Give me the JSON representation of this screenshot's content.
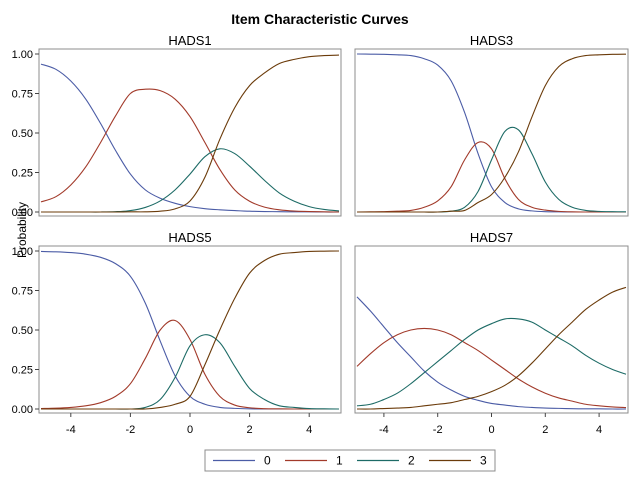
{
  "chart_data": {
    "type": "line",
    "title": "Item Characteristic Curves",
    "ylabel": "Probability",
    "xlabel": "",
    "xlim": [
      -5,
      5
    ],
    "ylim": [
      0,
      1
    ],
    "x_ticks": [
      -4,
      -2,
      0,
      2,
      4
    ],
    "y_ticks": [
      0,
      0.25,
      0.5,
      0.75,
      1
    ],
    "y_tick_labels": [
      "0.00",
      "0.25",
      "0.50",
      "0.75",
      "1.00"
    ],
    "grid": false,
    "legend": {
      "placement": "bottom-center",
      "entries": [
        {
          "label": "0",
          "color": "#4b5ca6"
        },
        {
          "label": "1",
          "color": "#a23a2a"
        },
        {
          "label": "2",
          "color": "#1d6b66"
        },
        {
          "label": "3",
          "color": "#6b3b0a"
        }
      ]
    },
    "x": [
      -5,
      -4.5,
      -4,
      -3.5,
      -3,
      -2.5,
      -2,
      -1.5,
      -1,
      -0.5,
      0,
      0.5,
      1,
      1.5,
      2,
      2.5,
      3,
      3.5,
      4,
      4.5,
      5
    ],
    "panels": [
      {
        "name": "HADS1",
        "series": [
          {
            "name": "0",
            "values": [
              0.936,
              0.903,
              0.829,
              0.715,
              0.56,
              0.39,
              0.24,
              0.14,
              0.087,
              0.055,
              0.034,
              0.021,
              0.014,
              0.009,
              0.005,
              0.003,
              0.002,
              0.001,
              0.001,
              0,
              0
            ]
          },
          {
            "name": "1",
            "values": [
              0.064,
              0.097,
              0.171,
              0.285,
              0.44,
              0.608,
              0.75,
              0.777,
              0.768,
              0.714,
              0.604,
              0.44,
              0.27,
              0.14,
              0.068,
              0.031,
              0.014,
              0.006,
              0.003,
              0.001,
              0
            ]
          },
          {
            "name": "2",
            "values": [
              0,
              0,
              0,
              0,
              0,
              0.002,
              0.009,
              0.029,
              0.07,
              0.14,
              0.24,
              0.35,
              0.4,
              0.37,
              0.29,
              0.2,
              0.12,
              0.068,
              0.034,
              0.016,
              0.007
            ]
          },
          {
            "name": "3",
            "values": [
              0,
              0,
              0,
              0,
              0,
              0,
              0.001,
              0.001,
              0.005,
              0.02,
              0.07,
              0.22,
              0.46,
              0.66,
              0.8,
              0.88,
              0.94,
              0.966,
              0.983,
              0.99,
              0.993
            ]
          }
        ]
      },
      {
        "name": "HADS3",
        "series": [
          {
            "name": "0",
            "values": [
              1,
              0.999,
              0.998,
              0.995,
              0.99,
              0.97,
              0.93,
              0.83,
              0.63,
              0.37,
              0.16,
              0.06,
              0.02,
              0.007,
              0.002,
              0.001,
              0,
              0,
              0,
              0,
              0
            ]
          },
          {
            "name": "1",
            "values": [
              0,
              0.001,
              0.002,
              0.005,
              0.01,
              0.03,
              0.07,
              0.16,
              0.33,
              0.44,
              0.4,
              0.21,
              0.08,
              0.03,
              0.012,
              0.004,
              0.001,
              0,
              0,
              0,
              0
            ]
          },
          {
            "name": "2",
            "values": [
              0,
              0,
              0,
              0,
              0,
              0,
              0,
              0.005,
              0.03,
              0.13,
              0.33,
              0.51,
              0.52,
              0.37,
              0.19,
              0.08,
              0.03,
              0.01,
              0.004,
              0.002,
              0.001
            ]
          },
          {
            "name": "3",
            "values": [
              0,
              0,
              0,
              0,
              0,
              0,
              0,
              0.005,
              0.01,
              0.06,
              0.11,
              0.22,
              0.38,
              0.6,
              0.8,
              0.92,
              0.97,
              0.99,
              0.995,
              0.998,
              0.999
            ]
          }
        ]
      },
      {
        "name": "HADS5",
        "series": [
          {
            "name": "0",
            "values": [
              0.997,
              0.995,
              0.99,
              0.98,
              0.96,
              0.92,
              0.84,
              0.67,
              0.43,
              0.21,
              0.08,
              0.03,
              0.01,
              0.004,
              0.001,
              0,
              0,
              0,
              0,
              0,
              0
            ]
          },
          {
            "name": "1",
            "values": [
              0.003,
              0.005,
              0.01,
              0.02,
              0.04,
              0.08,
              0.16,
              0.32,
              0.5,
              0.56,
              0.44,
              0.22,
              0.08,
              0.025,
              0.008,
              0.002,
              0.001,
              0,
              0,
              0,
              0
            ]
          },
          {
            "name": "2",
            "values": [
              0,
              0,
              0,
              0,
              0,
              0,
              0,
              0.01,
              0.06,
              0.2,
              0.4,
              0.47,
              0.42,
              0.27,
              0.13,
              0.06,
              0.02,
              0.01,
              0.003,
              0.001,
              0
            ]
          },
          {
            "name": "3",
            "values": [
              0,
              0,
              0,
              0,
              0,
              0,
              0,
              0,
              0.01,
              0.03,
              0.08,
              0.28,
              0.5,
              0.7,
              0.86,
              0.94,
              0.98,
              0.99,
              0.997,
              0.999,
              1
            ]
          }
        ]
      },
      {
        "name": "HADS7",
        "series": [
          {
            "name": "0",
            "values": [
              0.71,
              0.62,
              0.52,
              0.42,
              0.33,
              0.24,
              0.17,
              0.12,
              0.08,
              0.055,
              0.035,
              0.025,
              0.015,
              0.01,
              0.006,
              0.004,
              0.002,
              0.001,
              0.001,
              0,
              0
            ]
          },
          {
            "name": "1",
            "values": [
              0.27,
              0.35,
              0.42,
              0.47,
              0.5,
              0.51,
              0.5,
              0.47,
              0.42,
              0.37,
              0.31,
              0.25,
              0.19,
              0.14,
              0.1,
              0.07,
              0.05,
              0.03,
              0.02,
              0.013,
              0.009
            ]
          },
          {
            "name": "2",
            "values": [
              0.02,
              0.03,
              0.06,
              0.1,
              0.16,
              0.23,
              0.3,
              0.37,
              0.44,
              0.5,
              0.54,
              0.57,
              0.57,
              0.55,
              0.5,
              0.45,
              0.4,
              0.34,
              0.29,
              0.25,
              0.22
            ]
          },
          {
            "name": "3",
            "values": [
              0,
              0,
              0.003,
              0.006,
              0.01,
              0.02,
              0.03,
              0.04,
              0.06,
              0.08,
              0.11,
              0.15,
              0.21,
              0.29,
              0.38,
              0.47,
              0.55,
              0.63,
              0.69,
              0.74,
              0.77
            ]
          }
        ]
      }
    ]
  }
}
